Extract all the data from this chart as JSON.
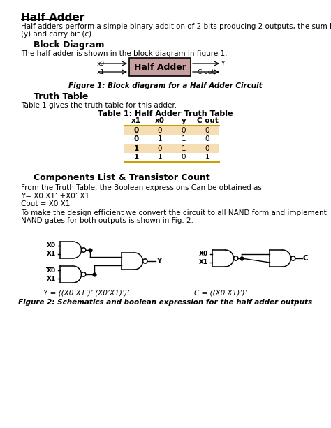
{
  "title": "Half Adder",
  "intro_1": "Half adders perform a simple binary addition of 2 bits producing 2 outputs, the sum bit",
  "intro_2": "(y) and carry bit (c).",
  "block_heading": "Block Diagram",
  "block_text": "The half adder is shown in the block diagram in figure 1.",
  "box_label": "Half Adder",
  "box_color": "#c9a0a0",
  "fig1_caption": "Figure 1: Block diagram for a Half Adder Circuit",
  "truth_heading": "Truth Table",
  "truth_text": "Table 1 gives the truth table for this adder.",
  "table_caption": "Table 1: Half Adder Truth Table",
  "table_headers": [
    "x1",
    "x0",
    "y",
    "C out"
  ],
  "table_data": [
    [
      "0",
      "0",
      "0",
      "0"
    ],
    [
      "0",
      "1",
      "1",
      "0"
    ],
    [
      "1",
      "0",
      "1",
      "0"
    ],
    [
      "1",
      "1",
      "0",
      "1"
    ]
  ],
  "row_colors": [
    "#f5deb3",
    "#ffffff",
    "#f5deb3",
    "#ffffff"
  ],
  "comp_heading": "Components List & Transistor Count",
  "bool_intro": "From the Truth Table, the Boolean expressions Can be obtained as",
  "bool_y": "Y= X0 X1’ +X0’ X1",
  "bool_c": "Cout = X0 X1",
  "nand_1": "To make the design efficient we convert the circuit to all NAND form and implement it",
  "nand_2": "NAND gates for both outputs is shown in Fig. 2.",
  "y_formula": "Y = ((X0 X1’)’ (X0’X1)’)’",
  "c_formula": "C = ((X0 X1)’)’",
  "fig2_caption": "Figure 2: Schematics and boolean expression for the half adder outputs",
  "bg": "#ffffff",
  "gold": "#c8a000",
  "black": "#000000"
}
